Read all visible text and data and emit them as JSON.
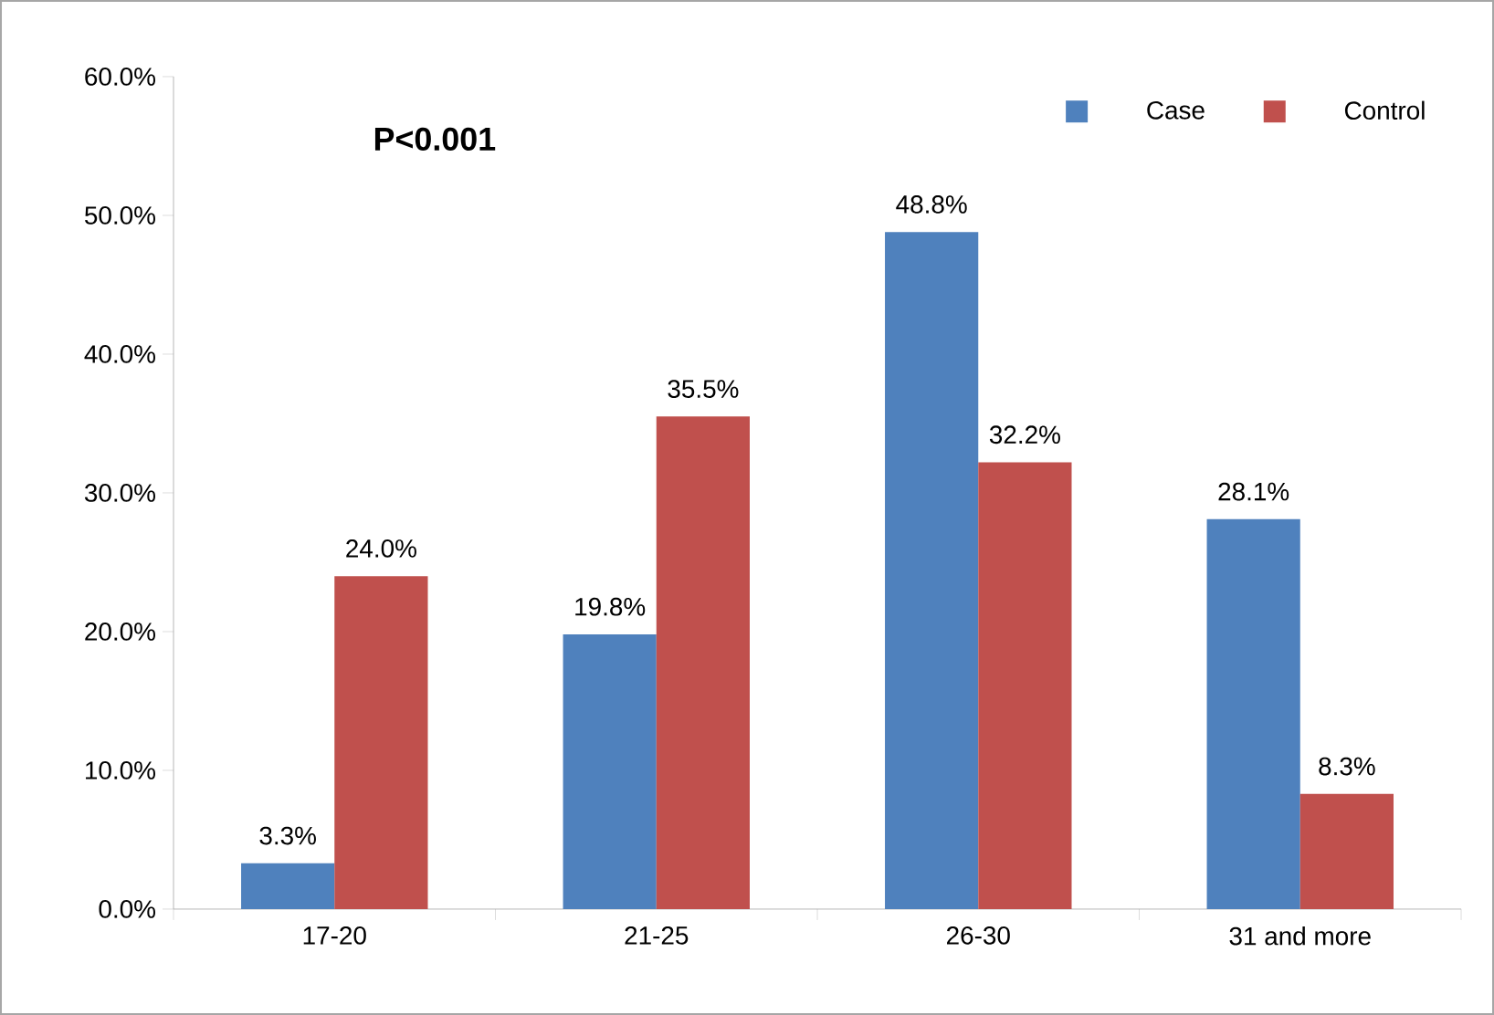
{
  "chart_data": {
    "type": "bar",
    "categories": [
      "17-20",
      "21-25",
      "26-30",
      "31 and more"
    ],
    "series": [
      {
        "name": "Case",
        "color": "#4f81bd",
        "values": [
          3.3,
          19.8,
          48.8,
          28.1
        ],
        "value_labels": [
          "3.3%",
          "19.8%",
          "48.8%",
          "28.1%"
        ]
      },
      {
        "name": "Control",
        "color": "#c0504d",
        "values": [
          24.0,
          35.5,
          32.2,
          8.3
        ],
        "value_labels": [
          "24.0%",
          "35.5%",
          "32.2%",
          "8.3%"
        ]
      }
    ],
    "ylim": [
      0,
      60
    ],
    "yticks": [
      {
        "value": 0,
        "label": "0.0%"
      },
      {
        "value": 10,
        "label": "10.0%"
      },
      {
        "value": 20,
        "label": "20.0%"
      },
      {
        "value": 30,
        "label": "30.0%"
      },
      {
        "value": 40,
        "label": "40.0%"
      },
      {
        "value": 50,
        "label": "50.0%"
      },
      {
        "value": 60,
        "label": "60.0%"
      }
    ],
    "legend": "top right",
    "grid": false,
    "annotations": [
      "P<0.001"
    ]
  }
}
